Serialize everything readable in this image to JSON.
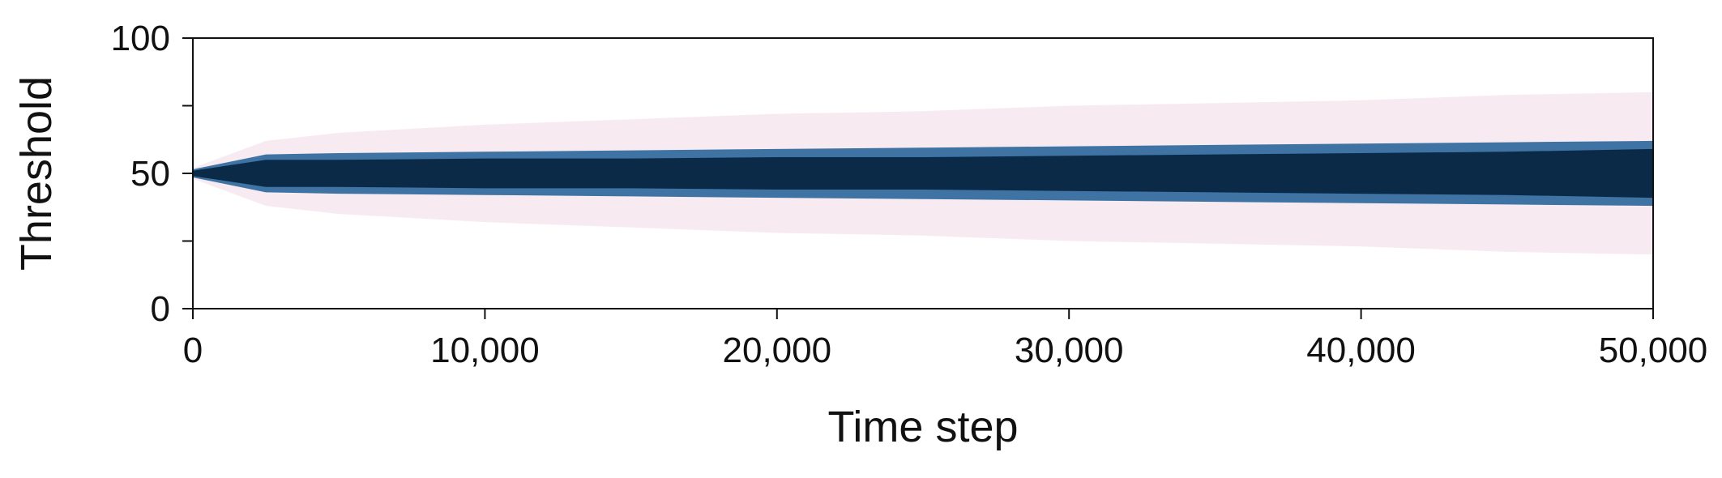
{
  "chart_data": {
    "type": "area",
    "title": "",
    "xlabel": "Time step",
    "ylabel": "Threshold",
    "xlim": [
      0,
      50000
    ],
    "ylim": [
      0,
      100
    ],
    "x_ticks": [
      0,
      10000,
      20000,
      30000,
      40000,
      50000
    ],
    "x_tick_labels": [
      "0",
      "10,000",
      "20,000",
      "30,000",
      "40,000",
      "50,000"
    ],
    "y_ticks": [
      0,
      25,
      50,
      75,
      100
    ],
    "y_tick_labels": [
      "0",
      "",
      "50",
      "",
      "100"
    ],
    "grid": false,
    "legend": "none",
    "series": [
      {
        "x": [
          0,
          2500,
          5000,
          10000,
          15000,
          20000,
          25000,
          30000,
          35000,
          40000,
          45000,
          50000
        ],
        "center": [
          50,
          50,
          50,
          50,
          50,
          50,
          50,
          50,
          50,
          50,
          50,
          50
        ],
        "core_low": [
          49,
          45,
          45,
          44.5,
          44.5,
          44,
          44,
          43.5,
          43,
          42.5,
          42,
          41
        ],
        "core_high": [
          51,
          55,
          55,
          55.5,
          55.5,
          56,
          56,
          56.5,
          57,
          57.5,
          58,
          59
        ],
        "mid_low": [
          48.5,
          43,
          42.5,
          42,
          41.5,
          41,
          40.5,
          40,
          39.5,
          39,
          38.5,
          38
        ],
        "mid_high": [
          51.5,
          57,
          57.5,
          58,
          58.5,
          59,
          59.5,
          60,
          60.5,
          61,
          61.5,
          62
        ],
        "outer_low": [
          48,
          38,
          35,
          32,
          30,
          28,
          27,
          25,
          24,
          23,
          21,
          20
        ],
        "outer_high": [
          52,
          62,
          65,
          68,
          70,
          72,
          73,
          75,
          76,
          77,
          79,
          80
        ]
      }
    ],
    "colors": {
      "core": "#0b2a48",
      "mid": "#1d5e96",
      "outer": "#f1dbe6",
      "axis": "#111111"
    }
  }
}
